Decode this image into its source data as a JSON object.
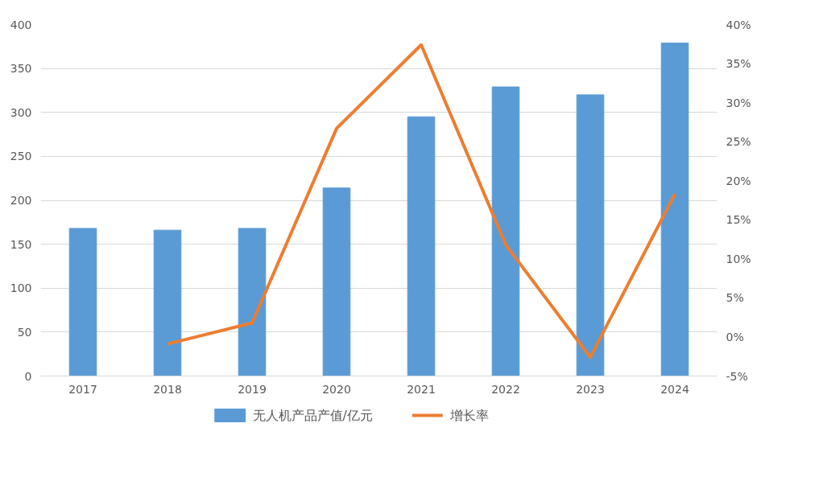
{
  "chart_data": {
    "type": "bar",
    "categories": [
      "2017",
      "2018",
      "2019",
      "2020",
      "2021",
      "2022",
      "2023",
      "2024"
    ],
    "series": [
      {
        "name": "无人机产品产值/亿元",
        "color": "#5b9bd5",
        "values": [
          168,
          166,
          168,
          214,
          295,
          329,
          320,
          379
        ]
      },
      {
        "name": "增长率",
        "type": "line",
        "axis": "y2",
        "color": "#ed7d31",
        "values": [
          null,
          -0.9,
          1.8,
          26.7,
          37.4,
          11.8,
          -2.6,
          18.3
        ]
      }
    ],
    "ylim": [
      0,
      400
    ],
    "yticks": [
      0,
      50,
      100,
      150,
      200,
      250,
      300,
      350,
      400
    ],
    "y2lim": [
      -5,
      40
    ],
    "y2ticks": [
      {
        "value": -5,
        "label": "-5%"
      },
      {
        "value": 0,
        "label": "0%"
      },
      {
        "value": 5,
        "label": "5%"
      },
      {
        "value": 10,
        "label": "10%"
      },
      {
        "value": 15,
        "label": "15%"
      },
      {
        "value": 20,
        "label": "20%"
      },
      {
        "value": 25,
        "label": "25%"
      },
      {
        "value": 30,
        "label": "30%"
      },
      {
        "value": 35,
        "label": "35%"
      },
      {
        "value": 40,
        "label": "40%"
      }
    ],
    "grid": "y",
    "legend": "bottom",
    "marker": "none",
    "line_style": "solid"
  }
}
